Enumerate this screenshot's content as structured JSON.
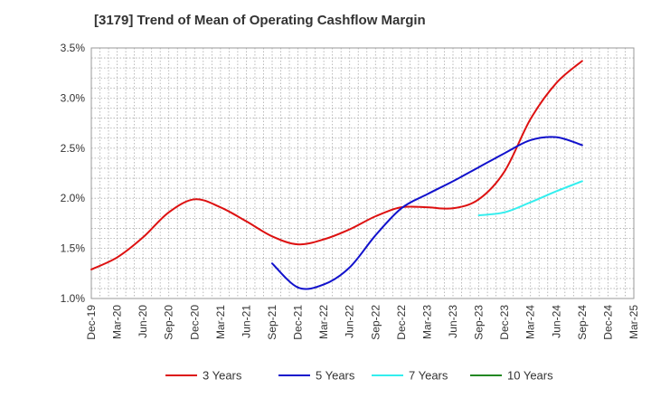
{
  "chart_data": {
    "type": "line",
    "title": "[3179]  Trend of Mean of Operating Cashflow Margin",
    "xlabel": "",
    "ylabel": "",
    "x_ticks": [
      "Dec-19",
      "Mar-20",
      "Jun-20",
      "Sep-20",
      "Dec-20",
      "Mar-21",
      "Jun-21",
      "Sep-21",
      "Dec-21",
      "Mar-22",
      "Jun-22",
      "Sep-22",
      "Dec-22",
      "Mar-23",
      "Jun-23",
      "Sep-23",
      "Dec-23",
      "Mar-24",
      "Jun-24",
      "Sep-24",
      "Dec-24",
      "Mar-25"
    ],
    "y_ticks": [
      "1.0%",
      "1.5%",
      "2.0%",
      "2.5%",
      "3.0%",
      "3.5%"
    ],
    "ylim": [
      1.0,
      3.5
    ],
    "y_unit": "%",
    "grid": true,
    "legend_position": "bottom",
    "x": [
      "Dec-19",
      "Mar-20",
      "Jun-20",
      "Sep-20",
      "Dec-20",
      "Mar-21",
      "Jun-21",
      "Sep-21",
      "Dec-21",
      "Mar-22",
      "Jun-22",
      "Sep-22",
      "Dec-22",
      "Mar-23",
      "Jun-23",
      "Sep-23",
      "Dec-23",
      "Mar-24",
      "Jun-24",
      "Sep-24"
    ],
    "series": [
      {
        "name": "3 Years",
        "color": "#dd1111",
        "values": [
          1.29,
          1.41,
          1.61,
          1.86,
          1.99,
          1.91,
          1.77,
          1.62,
          1.54,
          1.59,
          1.69,
          1.82,
          1.91,
          1.91,
          1.9,
          1.99,
          2.27,
          2.79,
          3.15,
          3.37
        ]
      },
      {
        "name": "5 Years",
        "color": "#1111cc",
        "values": [
          null,
          null,
          null,
          null,
          null,
          null,
          null,
          1.35,
          1.11,
          1.14,
          1.31,
          1.63,
          1.9,
          2.04,
          2.17,
          2.31,
          2.45,
          2.58,
          2.61,
          2.53
        ]
      },
      {
        "name": "7 Years",
        "color": "#33eeee",
        "values": [
          null,
          null,
          null,
          null,
          null,
          null,
          null,
          null,
          null,
          null,
          null,
          null,
          null,
          null,
          null,
          1.83,
          1.86,
          1.96,
          2.07,
          2.17
        ]
      },
      {
        "name": "10 Years",
        "color": "#228822",
        "values": [
          null,
          null,
          null,
          null,
          null,
          null,
          null,
          null,
          null,
          null,
          null,
          null,
          null,
          null,
          null,
          null,
          null,
          null,
          null,
          null
        ]
      }
    ]
  }
}
